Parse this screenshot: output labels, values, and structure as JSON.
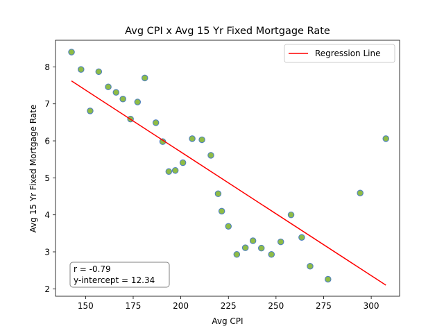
{
  "chart_data": {
    "type": "scatter",
    "title": "Avg CPI x Avg 15 Yr Fixed Mortgage Rate",
    "xlabel": "Avg CPI",
    "ylabel": "Avg 15 Yr Fixed Mortgage Rate",
    "xlim": [
      134.2,
      314.9
    ],
    "ylim": [
      1.8,
      8.72
    ],
    "xticks": [
      150,
      175,
      200,
      225,
      250,
      275,
      300
    ],
    "yticks": [
      2,
      3,
      4,
      5,
      6,
      7,
      8
    ],
    "grid": false,
    "legend": {
      "placement": "upper-right",
      "entries": [
        "Regression Line"
      ]
    },
    "annotation": {
      "placement": "lower-left",
      "r_text": "r = -0.79",
      "intercept_text": "y-intercept = 12.34"
    },
    "colors": {
      "point_fill": "#8fbc45",
      "point_edge": "#4f81bd",
      "regression": "#ff0000"
    },
    "points": [
      {
        "x": 142.6,
        "y": 8.4
      },
      {
        "x": 147.6,
        "y": 7.93
      },
      {
        "x": 152.4,
        "y": 6.81
      },
      {
        "x": 156.9,
        "y": 7.87
      },
      {
        "x": 161.9,
        "y": 7.46
      },
      {
        "x": 166.0,
        "y": 7.31
      },
      {
        "x": 169.6,
        "y": 7.13
      },
      {
        "x": 173.6,
        "y": 6.59
      },
      {
        "x": 177.3,
        "y": 7.05
      },
      {
        "x": 181.1,
        "y": 7.7
      },
      {
        "x": 186.9,
        "y": 6.49
      },
      {
        "x": 190.5,
        "y": 5.98
      },
      {
        "x": 193.7,
        "y": 5.17
      },
      {
        "x": 197.1,
        "y": 5.2
      },
      {
        "x": 201.1,
        "y": 5.41
      },
      {
        "x": 206.0,
        "y": 6.06
      },
      {
        "x": 211.1,
        "y": 6.03
      },
      {
        "x": 215.8,
        "y": 5.61
      },
      {
        "x": 219.6,
        "y": 4.57
      },
      {
        "x": 221.5,
        "y": 4.1
      },
      {
        "x": 225.0,
        "y": 3.69
      },
      {
        "x": 229.4,
        "y": 2.93
      },
      {
        "x": 233.9,
        "y": 3.11
      },
      {
        "x": 237.9,
        "y": 3.3
      },
      {
        "x": 242.3,
        "y": 3.1
      },
      {
        "x": 247.6,
        "y": 2.93
      },
      {
        "x": 252.5,
        "y": 3.27
      },
      {
        "x": 257.9,
        "y": 4.0
      },
      {
        "x": 263.5,
        "y": 3.39
      },
      {
        "x": 267.9,
        "y": 2.61
      },
      {
        "x": 277.3,
        "y": 2.26
      },
      {
        "x": 294.2,
        "y": 4.59
      },
      {
        "x": 307.7,
        "y": 6.06
      }
    ],
    "regression": {
      "x": [
        142.6,
        307.7
      ],
      "y": [
        7.62,
        2.1
      ]
    }
  }
}
